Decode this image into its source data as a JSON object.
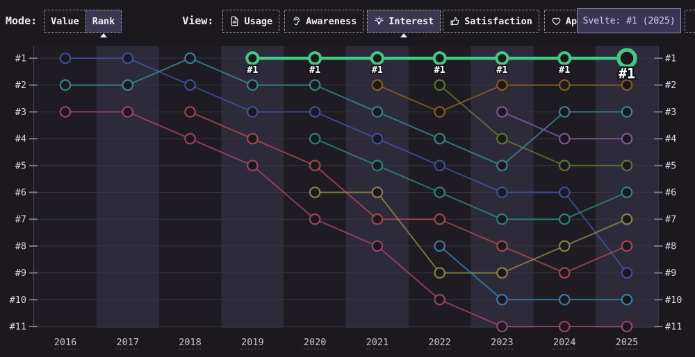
{
  "toolbar": {
    "mode_label": "Mode:",
    "mode_options": [
      {
        "label": "Value",
        "selected": false
      },
      {
        "label": "Rank",
        "selected": true
      }
    ],
    "view_label": "View:",
    "view_options": [
      {
        "label": "Usage",
        "icon": "file-icon",
        "selected": false
      },
      {
        "label": "Awareness",
        "icon": "ear-icon",
        "selected": false
      },
      {
        "label": "Interest",
        "icon": "bulb-icon",
        "selected": true
      },
      {
        "label": "Satisfaction",
        "icon": "thumbs-up-icon",
        "selected": false
      },
      {
        "label": "Appreciation",
        "icon": "heart-icon",
        "selected": false
      }
    ]
  },
  "tooltip": {
    "text": "Svelte: #1 (2025)"
  },
  "chart_data": {
    "type": "line",
    "subtype": "bump-rank",
    "title": "",
    "xlabel": "",
    "ylabel": "",
    "x": [
      "2016",
      "2017",
      "2018",
      "2019",
      "2020",
      "2021",
      "2022",
      "2023",
      "2024",
      "2025"
    ],
    "y_ticks": [
      "#1",
      "#2",
      "#3",
      "#4",
      "#5",
      "#6",
      "#7",
      "#8",
      "#9",
      "#10",
      "#11"
    ],
    "y_axis_inverted": true,
    "grid": true,
    "legend_position": "none",
    "highlighted_series": "Svelte",
    "highlight_point_label": "#1",
    "hovered_point": {
      "series": "Svelte",
      "year": "2025",
      "rank": 1
    },
    "series": [
      {
        "name": "indigo",
        "color": "#4553a6",
        "ranks": {
          "2016": 1,
          "2017": 1,
          "2018": 2,
          "2019": 3,
          "2020": 3,
          "2021": 4,
          "2022": 5,
          "2023": 6,
          "2024": 6,
          "2025": 9
        }
      },
      {
        "name": "teal",
        "color": "#3e8c9c",
        "ranks": {
          "2016": 2,
          "2017": 2,
          "2018": 1,
          "2019": 2,
          "2020": 2,
          "2021": 3,
          "2022": 4,
          "2023": 5,
          "2024": 3,
          "2025": 3
        }
      },
      {
        "name": "wine",
        "color": "#a34a6b",
        "ranks": {
          "2016": 3,
          "2017": 3,
          "2018": 4,
          "2019": 5,
          "2020": 7,
          "2021": 8,
          "2022": 10,
          "2023": 11,
          "2024": 11,
          "2025": 11
        }
      },
      {
        "name": "red",
        "color": "#b04b53",
        "ranks": {
          "2018": 3,
          "2019": 4,
          "2020": 5,
          "2021": 7,
          "2022": 7,
          "2023": 8,
          "2024": 9,
          "2025": 8
        }
      },
      {
        "name": "sea-green",
        "color": "#2f8d80",
        "ranks": {
          "2020": 4,
          "2021": 5,
          "2022": 6,
          "2023": 7,
          "2024": 7,
          "2025": 6
        }
      },
      {
        "name": "olive",
        "color": "#948d4c",
        "ranks": {
          "2020": 6,
          "2021": 6,
          "2022": 9,
          "2023": 9,
          "2024": 8,
          "2025": 7
        }
      },
      {
        "name": "amber",
        "color": "#8f6420",
        "ranks": {
          "2021": 2,
          "2022": 3,
          "2023": 2,
          "2024": 2,
          "2025": 2
        }
      },
      {
        "name": "moss-green",
        "color": "#627f3a",
        "ranks": {
          "2022": 2,
          "2023": 4,
          "2024": 5,
          "2025": 5
        }
      },
      {
        "name": "steel-blue",
        "color": "#4183b5",
        "ranks": {
          "2022": 8,
          "2023": 10,
          "2024": 10,
          "2025": 10
        }
      },
      {
        "name": "purple",
        "color": "#855fa6",
        "ranks": {
          "2023": 3,
          "2024": 4,
          "2025": 4
        }
      },
      {
        "name": "Svelte",
        "color": "#46c687",
        "highlight": true,
        "ranks": {
          "2019": 1,
          "2020": 1,
          "2021": 1,
          "2022": 1,
          "2023": 1,
          "2024": 1,
          "2025": 1
        }
      }
    ]
  }
}
